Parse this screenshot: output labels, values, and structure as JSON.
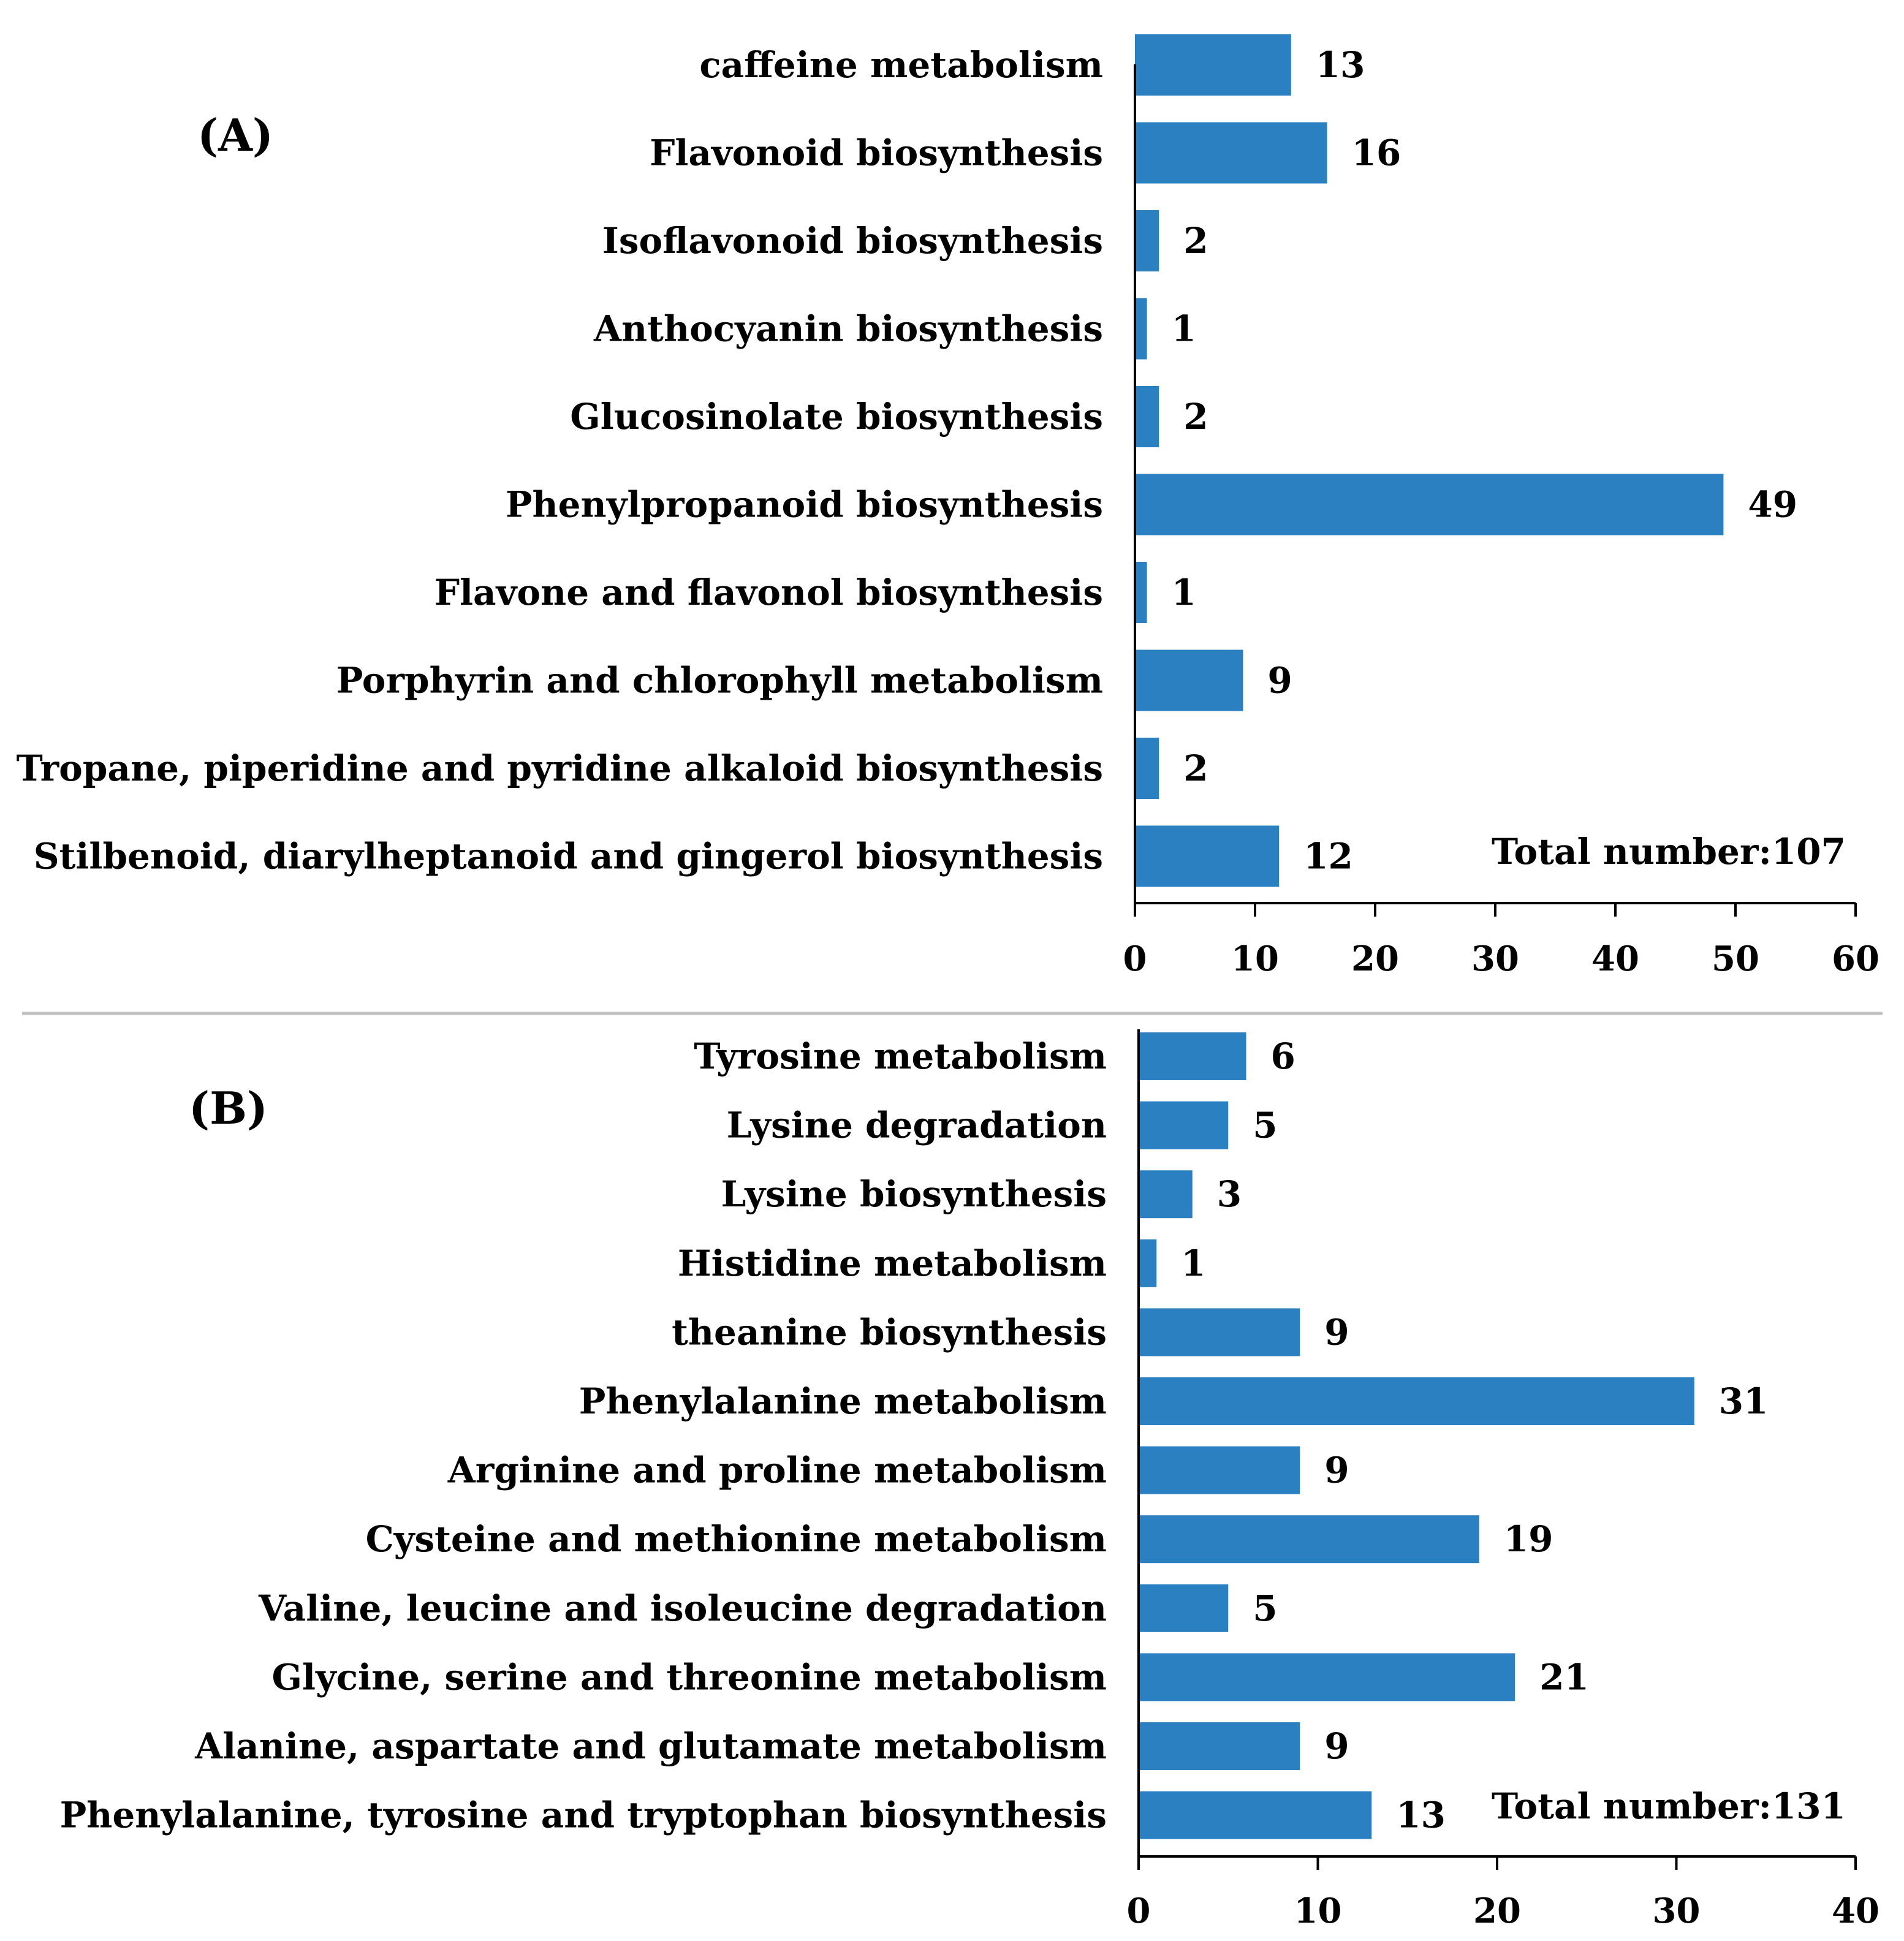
{
  "colors": {
    "bar": "#2a80c1",
    "text": "#000000",
    "divider": "#c0c0c0"
  },
  "chart_data": [
    {
      "type": "bar",
      "orientation": "horizontal",
      "panel": "(A)",
      "categories": [
        "caffeine metabolism",
        "Flavonoid biosynthesis",
        "Isoflavonoid biosynthesis",
        "Anthocyanin biosynthesis",
        "Glucosinolate biosynthesis",
        "Phenylpropanoid biosynthesis",
        "Flavone and flavonol biosynthesis",
        "Porphyrin and chlorophyll metabolism",
        "Tropane, piperidine and pyridine alkaloid biosynthesis",
        "Stilbenoid, diarylheptanoid and gingerol biosynthesis"
      ],
      "values": [
        13,
        16,
        2,
        1,
        2,
        49,
        1,
        9,
        2,
        12
      ],
      "annotation": "Total number:107",
      "xlim": [
        0,
        60
      ],
      "xticks": [
        0,
        10,
        20,
        30,
        40,
        50,
        60
      ],
      "grid": false,
      "title": "",
      "xlabel": "",
      "ylabel": ""
    },
    {
      "type": "bar",
      "orientation": "horizontal",
      "panel": "(B)",
      "categories": [
        "Tyrosine metabolism",
        "Lysine degradation",
        "Lysine biosynthesis",
        "Histidine metabolism",
        "theanine biosynthesis",
        "Phenylalanine metabolism",
        "Arginine and proline metabolism",
        "Cysteine and methionine metabolism",
        "Valine, leucine and isoleucine degradation",
        "Glycine, serine and threonine metabolism",
        "Alanine, aspartate and glutamate metabolism",
        "Phenylalanine, tyrosine and tryptophan biosynthesis"
      ],
      "values": [
        6,
        5,
        3,
        1,
        9,
        31,
        9,
        19,
        5,
        21,
        9,
        13
      ],
      "annotation": "Total number:131",
      "xlim": [
        0,
        40
      ],
      "xticks": [
        0,
        10,
        20,
        30,
        40
      ],
      "grid": false,
      "title": "",
      "xlabel": "",
      "ylabel": ""
    }
  ]
}
